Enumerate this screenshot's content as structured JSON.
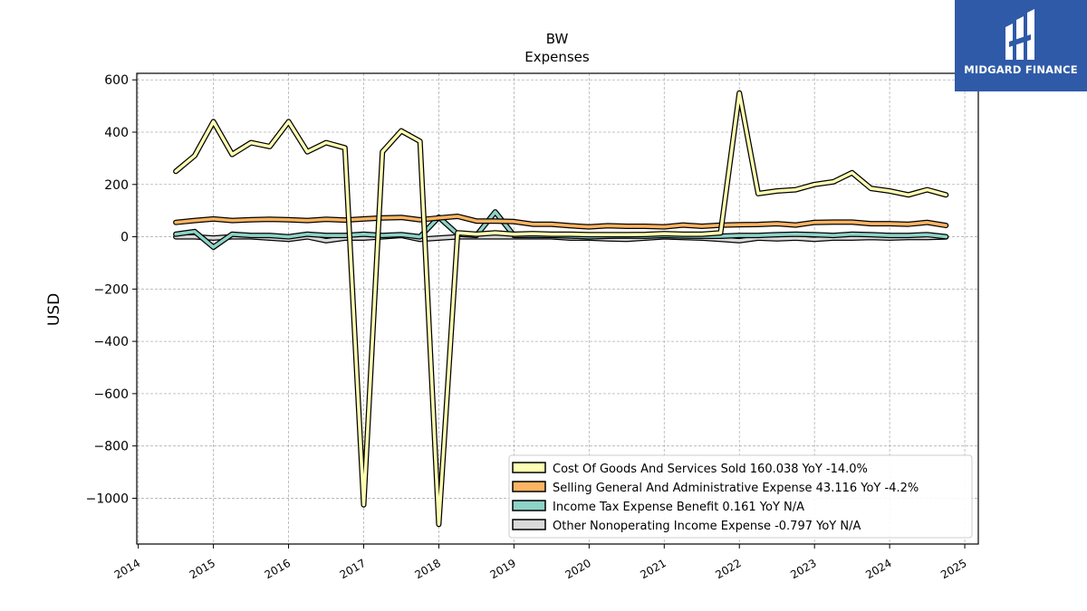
{
  "chart_data": {
    "type": "line",
    "title": "BW",
    "subtitle": "Expenses",
    "ylabel": "USD",
    "xlim": [
      2013.98,
      2025.18
    ],
    "ylim": [
      -1175,
      625
    ],
    "grid": true,
    "legend_position": "bottom-right",
    "x_ticks": [
      "2014",
      "2015",
      "2016",
      "2017",
      "2018",
      "2019",
      "2020",
      "2021",
      "2022",
      "2023",
      "2024",
      "2025"
    ],
    "y_ticks": [
      600,
      400,
      200,
      0,
      -200,
      -400,
      -600,
      -800,
      -1000
    ],
    "y_tick_labels": [
      "600",
      "400",
      "200",
      "0",
      "−200",
      "−400",
      "−600",
      "−800",
      "−1000"
    ],
    "series": [
      {
        "name": "Cost Of Goods And Services Sold",
        "legend": "Cost Of Goods And Services Sold  160.038 YoY -14.0%",
        "color": "#ffffb3",
        "x": [
          2014.5,
          2014.75,
          2015.0,
          2015.25,
          2015.5,
          2015.75,
          2016.0,
          2016.25,
          2016.5,
          2016.75,
          2017.0,
          2017.25,
          2017.5,
          2017.75,
          2018.0,
          2018.25,
          2018.5,
          2018.75,
          2019.0,
          2019.25,
          2019.5,
          2019.75,
          2020.0,
          2020.25,
          2020.5,
          2020.75,
          2021.0,
          2021.25,
          2021.5,
          2021.75,
          2022.0,
          2022.25,
          2022.5,
          2022.75,
          2023.0,
          2023.25,
          2023.5,
          2023.75,
          2024.0,
          2024.25,
          2024.5,
          2024.75
        ],
        "y": [
          250,
          310,
          440,
          315,
          360,
          345,
          440,
          325,
          360,
          340,
          -1025,
          325,
          405,
          365,
          -1100,
          15,
          10,
          15,
          10,
          12,
          10,
          10,
          8,
          8,
          8,
          9,
          12,
          10,
          10,
          15,
          550,
          165,
          175,
          180,
          200,
          210,
          245,
          185,
          175,
          160,
          180,
          160
        ]
      },
      {
        "name": "Selling General And Administrative Expense",
        "legend": "Selling General And Administrative Expense  43.116 YoY -4.2%",
        "color": "#fdb462",
        "x": [
          2014.5,
          2014.75,
          2015.0,
          2015.25,
          2015.5,
          2015.75,
          2016.0,
          2016.25,
          2016.5,
          2016.75,
          2017.0,
          2017.25,
          2017.5,
          2017.75,
          2018.0,
          2018.25,
          2018.5,
          2018.75,
          2019.0,
          2019.25,
          2019.5,
          2019.75,
          2020.0,
          2020.25,
          2020.5,
          2020.75,
          2021.0,
          2021.25,
          2021.5,
          2021.75,
          2022.0,
          2022.25,
          2022.5,
          2022.75,
          2023.0,
          2023.25,
          2023.5,
          2023.75,
          2024.0,
          2024.25,
          2024.5,
          2024.75
        ],
        "y": [
          55,
          62,
          68,
          62,
          65,
          67,
          65,
          62,
          67,
          64,
          68,
          72,
          74,
          65,
          72,
          78,
          60,
          60,
          58,
          48,
          48,
          42,
          38,
          42,
          40,
          40,
          38,
          45,
          40,
          44,
          46,
          47,
          50,
          45,
          55,
          56,
          56,
          50,
          50,
          48,
          55,
          43
        ]
      },
      {
        "name": "Income Tax Expense Benefit",
        "legend": "Income Tax Expense Benefit  0.161 YoY N/A",
        "color": "#8dd3c7",
        "x": [
          2014.5,
          2014.75,
          2015.0,
          2015.25,
          2015.5,
          2015.75,
          2016.0,
          2016.25,
          2016.5,
          2016.75,
          2017.0,
          2017.25,
          2017.5,
          2017.75,
          2018.0,
          2018.25,
          2018.5,
          2018.75,
          2019.0,
          2019.25,
          2019.5,
          2019.75,
          2020.0,
          2020.25,
          2020.5,
          2020.75,
          2021.0,
          2021.25,
          2021.5,
          2021.75,
          2022.0,
          2022.25,
          2022.5,
          2022.75,
          2023.0,
          2023.25,
          2023.5,
          2023.75,
          2024.0,
          2024.25,
          2024.5,
          2024.75
        ],
        "y": [
          10,
          20,
          -40,
          10,
          5,
          5,
          0,
          10,
          5,
          5,
          10,
          5,
          8,
          0,
          75,
          10,
          5,
          95,
          5,
          5,
          5,
          3,
          0,
          2,
          3,
          2,
          5,
          3,
          2,
          2,
          5,
          5,
          8,
          10,
          8,
          5,
          10,
          8,
          5,
          5,
          8,
          0.161
        ]
      },
      {
        "name": "Other Nonoperating Income Expense",
        "legend": "Other Nonoperating Income Expense  -0.797 YoY N/A",
        "color": "#d9d9d9",
        "x": [
          2014.5,
          2014.75,
          2015.0,
          2015.25,
          2015.5,
          2015.75,
          2016.0,
          2016.25,
          2016.5,
          2016.75,
          2017.0,
          2017.25,
          2017.5,
          2017.75,
          2018.0,
          2018.25,
          2018.5,
          2018.75,
          2019.0,
          2019.25,
          2019.5,
          2019.75,
          2020.0,
          2020.25,
          2020.5,
          2020.75,
          2021.0,
          2021.25,
          2021.5,
          2021.75,
          2022.0,
          2022.25,
          2022.5,
          2022.75,
          2023.0,
          2023.25,
          2023.5,
          2023.75,
          2024.0,
          2024.25,
          2024.5,
          2024.75
        ],
        "y": [
          0,
          0,
          -5,
          0,
          0,
          -5,
          -10,
          0,
          -15,
          -5,
          -5,
          0,
          5,
          -10,
          -5,
          0,
          0,
          0,
          0,
          0,
          0,
          -5,
          -5,
          -8,
          -10,
          -5,
          0,
          -3,
          -5,
          -10,
          -15,
          -5,
          -8,
          -5,
          -10,
          -5,
          -5,
          -3,
          -5,
          -3,
          -3,
          -0.797
        ]
      }
    ]
  },
  "logo": {
    "text": "MIDGARD FINANCE",
    "color": "#2f5aa8"
  }
}
